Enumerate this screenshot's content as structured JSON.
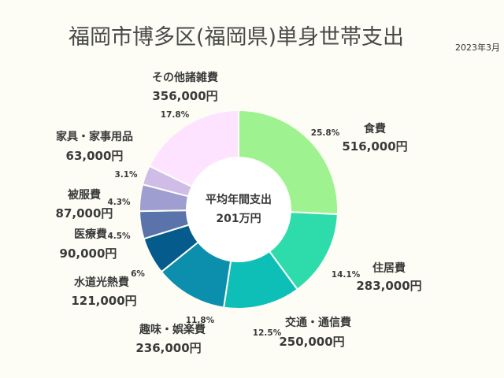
{
  "colors": {
    "background": "#fdfdf6",
    "slices": [
      "#9ef28f",
      "#2edcab",
      "#0ebfb8",
      "#0c8fad",
      "#045b8c",
      "#5a73aa",
      "#9e9ed0",
      "#cfbde8",
      "#fde3ff"
    ]
  },
  "chart_data": {
    "type": "pie",
    "style": "donut",
    "title": "福岡市博多区(福岡県)単身世帯支出",
    "date": "2023年3月",
    "center_label": [
      "平均年間支出",
      "201万円"
    ],
    "legend": "none",
    "slices": [
      {
        "name": "食費",
        "value": 516000,
        "value_label": "516,000円",
        "percent_label": "25.8%"
      },
      {
        "name": "住居費",
        "value": 283000,
        "value_label": "283,000円",
        "percent_label": "14.1%"
      },
      {
        "name": "交通・通信費",
        "value": 250000,
        "value_label": "250,000円",
        "percent_label": "12.5%"
      },
      {
        "name": "趣味・娯楽費",
        "value": 236000,
        "value_label": "236,000円",
        "percent_label": "11.8%"
      },
      {
        "name": "水道光熱費",
        "value": 121000,
        "value_label": "121,000円",
        "percent_label": "6%"
      },
      {
        "name": "医療費",
        "value": 90000,
        "value_label": "90,000円",
        "percent_label": "4.5%"
      },
      {
        "name": "被服費",
        "value": 87000,
        "value_label": "87,000円",
        "percent_label": "4.3%"
      },
      {
        "name": "家具・家事用品",
        "value": 63000,
        "value_label": "63,000円",
        "percent_label": "3.1%"
      },
      {
        "name": "その他諸雑費",
        "value": 356000,
        "value_label": "356,000円",
        "percent_label": "17.8%"
      }
    ]
  }
}
